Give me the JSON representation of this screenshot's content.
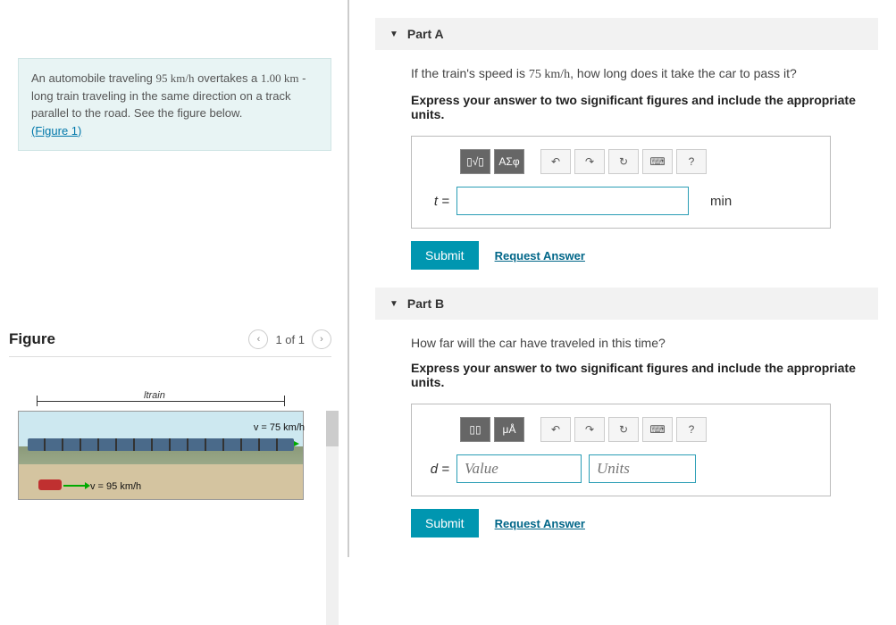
{
  "problem": {
    "text_before_speed1": "An automobile traveling ",
    "speed1": "95 km/h",
    "text_mid": " overtakes a ",
    "length": "1.00 km",
    "text_after": " - long train traveling in the same direction on a track parallel to the road. See the figure below.",
    "figure_link": "(Figure 1)"
  },
  "figure": {
    "heading": "Figure",
    "counter": "1 of 1",
    "label_train": "ltrain",
    "v_train": "v = 75 km/h",
    "v_car": "v = 95 km/h"
  },
  "partA": {
    "title": "Part A",
    "question_before": "If the train's speed is ",
    "train_speed": "75 km/h",
    "question_after": ", how long does it take the car to pass it?",
    "instruction": "Express your answer to two significant figures and include the appropriate units.",
    "variable": "t =",
    "unit": "min",
    "submit": "Submit",
    "request": "Request Answer",
    "toolbar": {
      "templates": "▯√▯",
      "greek": "ΑΣφ",
      "undo": "↶",
      "redo": "↷",
      "reset": "↻",
      "keyboard": "⌨",
      "help": "?"
    }
  },
  "partB": {
    "title": "Part B",
    "question": "How far will the car have traveled in this time?",
    "instruction": "Express your answer to two significant figures and include the appropriate units.",
    "variable": "d =",
    "value_placeholder": "Value",
    "units_placeholder": "Units",
    "submit": "Submit",
    "request": "Request Answer",
    "toolbar": {
      "templates": "▯▯",
      "units": "μÅ",
      "undo": "↶",
      "redo": "↷",
      "reset": "↻",
      "keyboard": "⌨",
      "help": "?"
    }
  }
}
